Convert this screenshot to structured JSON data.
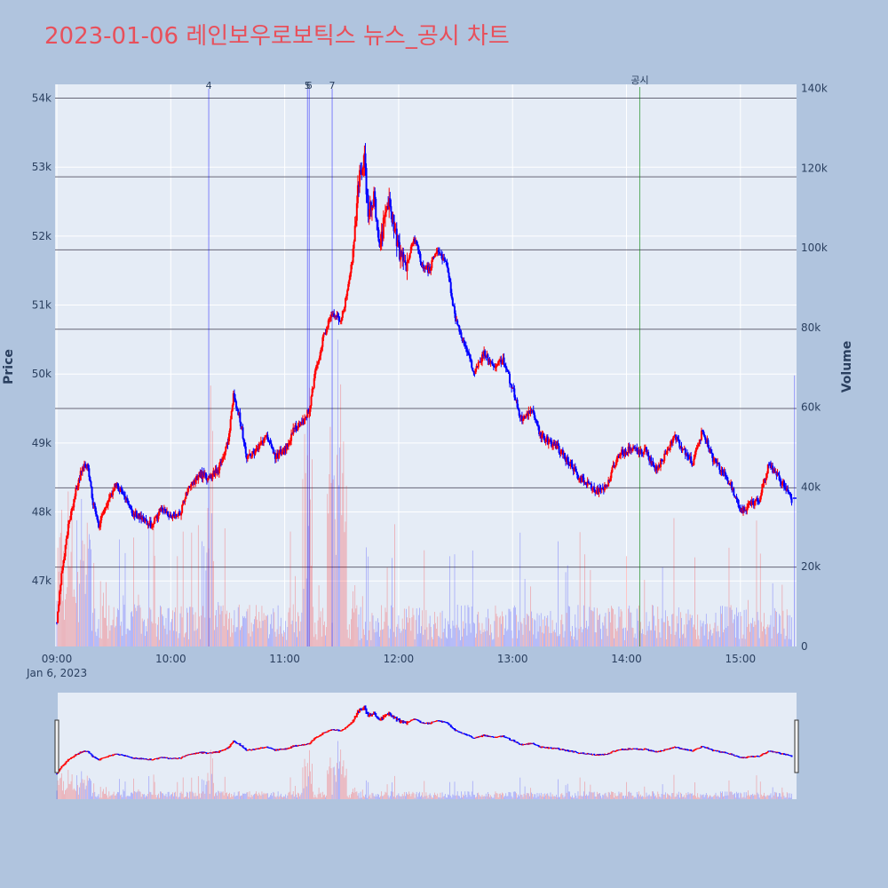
{
  "chart_data": {
    "type": "candlestick",
    "title": "2023-01-06 레인보우로보틱스 뉴스_공시 차트",
    "x_axis": {
      "ticks": [
        "09:00",
        "10:00",
        "11:00",
        "12:00",
        "13:00",
        "14:00",
        "15:00"
      ],
      "date_label": "Jan 6, 2023",
      "range": [
        "09:00",
        "15:30"
      ]
    },
    "y_axis_left": {
      "title": "Price",
      "ticks": [
        "47k",
        "48k",
        "49k",
        "50k",
        "51k",
        "52k",
        "53k",
        "54k"
      ],
      "range": [
        46050,
        54200
      ]
    },
    "y_axis_right": {
      "title": "Volume",
      "ticks": [
        "0",
        "20k",
        "40k",
        "60k",
        "80k",
        "100k",
        "120k",
        "140k"
      ],
      "range": [
        0,
        141000
      ]
    },
    "colors": {
      "up": "#ff0000",
      "down": "#0000ff",
      "background": "#b0c4de",
      "plot_bg": "#e5ecf6",
      "title": "#e8505b",
      "marker_line": "#0000ff",
      "disclosure_line": "#008000"
    },
    "horizontal_lines": [
      54000,
      52860,
      51800,
      50650,
      49500,
      48350,
      47200
    ],
    "news_markers": [
      {
        "label": "4",
        "time": "10:20"
      },
      {
        "label": "5",
        "time": "11:12"
      },
      {
        "label": "6",
        "time": "11:12"
      },
      {
        "label": "7",
        "time": "11:25"
      }
    ],
    "disclosure_marker": {
      "label": "공시",
      "time": "14:07"
    },
    "price_keypoints": [
      [
        "09:00",
        46400
      ],
      [
        "09:03",
        47200
      ],
      [
        "09:06",
        47800
      ],
      [
        "09:10",
        48300
      ],
      [
        "09:13",
        48600
      ],
      [
        "09:16",
        48700
      ],
      [
        "09:19",
        48150
      ],
      [
        "09:22",
        47800
      ],
      [
        "09:26",
        48100
      ],
      [
        "09:31",
        48400
      ],
      [
        "09:35",
        48250
      ],
      [
        "09:40",
        48000
      ],
      [
        "09:45",
        47900
      ],
      [
        "09:50",
        47800
      ],
      [
        "09:55",
        48050
      ],
      [
        "10:00",
        47950
      ],
      [
        "10:05",
        48000
      ],
      [
        "10:10",
        48400
      ],
      [
        "10:15",
        48550
      ],
      [
        "10:20",
        48500
      ],
      [
        "10:25",
        48600
      ],
      [
        "10:30",
        49000
      ],
      [
        "10:33",
        49700
      ],
      [
        "10:36",
        49400
      ],
      [
        "10:40",
        48800
      ],
      [
        "10:45",
        48900
      ],
      [
        "10:50",
        49100
      ],
      [
        "10:55",
        48800
      ],
      [
        "11:00",
        48900
      ],
      [
        "11:05",
        49200
      ],
      [
        "11:10",
        49300
      ],
      [
        "11:13",
        49500
      ],
      [
        "11:16",
        50000
      ],
      [
        "11:20",
        50500
      ],
      [
        "11:25",
        50900
      ],
      [
        "11:30",
        50800
      ],
      [
        "11:33",
        51200
      ],
      [
        "11:36",
        51800
      ],
      [
        "11:39",
        52800
      ],
      [
        "11:42",
        53100
      ],
      [
        "11:44",
        52300
      ],
      [
        "11:47",
        52600
      ],
      [
        "11:50",
        51900
      ],
      [
        "11:55",
        52500
      ],
      [
        "12:00",
        51800
      ],
      [
        "12:04",
        51500
      ],
      [
        "12:08",
        52000
      ],
      [
        "12:12",
        51600
      ],
      [
        "12:16",
        51500
      ],
      [
        "12:20",
        51800
      ],
      [
        "12:25",
        51600
      ],
      [
        "12:30",
        50800
      ],
      [
        "12:35",
        50400
      ],
      [
        "12:40",
        50000
      ],
      [
        "12:45",
        50300
      ],
      [
        "12:50",
        50100
      ],
      [
        "12:55",
        50200
      ],
      [
        "13:00",
        49800
      ],
      [
        "13:05",
        49300
      ],
      [
        "13:10",
        49500
      ],
      [
        "13:15",
        49100
      ],
      [
        "13:20",
        49000
      ],
      [
        "13:25",
        48900
      ],
      [
        "13:30",
        48700
      ],
      [
        "13:35",
        48500
      ],
      [
        "13:40",
        48400
      ],
      [
        "13:45",
        48300
      ],
      [
        "13:50",
        48400
      ],
      [
        "13:55",
        48800
      ],
      [
        "14:00",
        48900
      ],
      [
        "14:05",
        48900
      ],
      [
        "14:10",
        48900
      ],
      [
        "14:15",
        48600
      ],
      [
        "14:20",
        48800
      ],
      [
        "14:25",
        49100
      ],
      [
        "14:30",
        48900
      ],
      [
        "14:35",
        48700
      ],
      [
        "14:40",
        49200
      ],
      [
        "14:45",
        48800
      ],
      [
        "14:50",
        48600
      ],
      [
        "14:55",
        48400
      ],
      [
        "15:00",
        48000
      ],
      [
        "15:05",
        48100
      ],
      [
        "15:10",
        48200
      ],
      [
        "15:15",
        48700
      ],
      [
        "15:20",
        48500
      ],
      [
        "15:25",
        48300
      ],
      [
        "15:27",
        48150
      ]
    ]
  }
}
